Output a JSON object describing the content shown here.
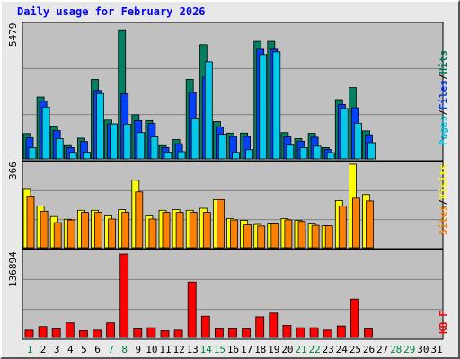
{
  "window": {
    "title": "Daily usage for February 2026"
  },
  "colors": {
    "pages": "#00c8e8",
    "files": "#0040ff",
    "hits": "#008060",
    "sites": "#ff8000",
    "visits": "#ffff00",
    "kbytes": "#ff0000",
    "weekend_day": "#008040",
    "weekday": "#000000"
  },
  "chart_data": {
    "type": "bar",
    "title": "Daily usage for February 2026",
    "days": [
      "1",
      "2",
      "3",
      "4",
      "5",
      "6",
      "7",
      "8",
      "9",
      "10",
      "11",
      "12",
      "13",
      "14",
      "15",
      "16",
      "17",
      "18",
      "19",
      "20",
      "21",
      "22",
      "23",
      "24",
      "25",
      "26",
      "27",
      "28",
      "29",
      "30",
      "31"
    ],
    "weekend_days": [
      "1",
      "7",
      "8",
      "14",
      "15",
      "21",
      "22",
      "28",
      "29"
    ],
    "panels": [
      {
        "id": "hits-files-pages",
        "ymax_label": "5479",
        "ymax": 5479,
        "legend": [
          "Pages",
          "/",
          "Files",
          "/",
          "Hits"
        ],
        "series": [
          {
            "name": "Hits",
            "values": [
              1050,
              2570,
              1360,
              550,
              860,
              3300,
              1610,
              5360,
              1830,
              1590,
              550,
              800,
              3300,
              4740,
              1550,
              1070,
              1070,
              4880,
              4880,
              1090,
              840,
              1060,
              470,
              2460,
              2960,
              1160,
              0,
              0,
              0,
              0,
              0
            ]
          },
          {
            "name": "Files",
            "values": [
              880,
              2410,
              1170,
              470,
              720,
              2840,
              1450,
              2700,
              1590,
              1470,
              470,
              630,
              2760,
              3390,
              1330,
              930,
              930,
              4550,
              4550,
              910,
              730,
              900,
              390,
              2260,
              2120,
              1000,
              0,
              0,
              0,
              0,
              0
            ]
          },
          {
            "name": "Pages",
            "values": [
              460,
              2150,
              840,
              270,
              280,
              2710,
              1450,
              1440,
              1090,
              910,
              280,
              300,
              1660,
              4030,
              1020,
              270,
              380,
              4330,
              4440,
              570,
              470,
              530,
              260,
              2090,
              1480,
              670,
              0,
              0,
              0,
              0,
              0
            ]
          }
        ]
      },
      {
        "id": "visits-sites",
        "ymax_label": "366",
        "ymax": 366,
        "legend": [
          "Sites",
          "/",
          "Visits"
        ],
        "series": [
          {
            "name": "Visits",
            "values": [
              256,
              183,
              137,
              125,
              164,
              164,
              140,
              167,
              296,
              140,
              164,
              167,
              164,
              173,
              211,
              128,
              120,
              102,
              104,
              128,
              120,
              104,
              96,
              207,
              366,
              233,
              0,
              0,
              0,
              0,
              0
            ]
          },
          {
            "name": "Sites",
            "values": [
              226,
              160,
              110,
              122,
              155,
              155,
              126,
              155,
              245,
              126,
              155,
              155,
              155,
              155,
              211,
              122,
              100,
              95,
              104,
              122,
              115,
              98,
              96,
              183,
              217,
              205,
              0,
              0,
              0,
              0,
              0
            ]
          }
        ]
      },
      {
        "id": "kbytes",
        "ymax_label": "136894",
        "ymax": 136894,
        "legend": [
          "KB",
          "F"
        ],
        "series": [
          {
            "name": "KBytes",
            "values": [
              12000,
              18000,
              14000,
              24000,
              11000,
              12000,
              24000,
              136894,
              14000,
              16000,
              11000,
              12000,
              91000,
              35000,
              14000,
              14000,
              14000,
              34000,
              40000,
              20000,
              16000,
              16000,
              12000,
              19000,
              63000,
              14000,
              0,
              0,
              0,
              0,
              0
            ]
          }
        ]
      }
    ]
  }
}
